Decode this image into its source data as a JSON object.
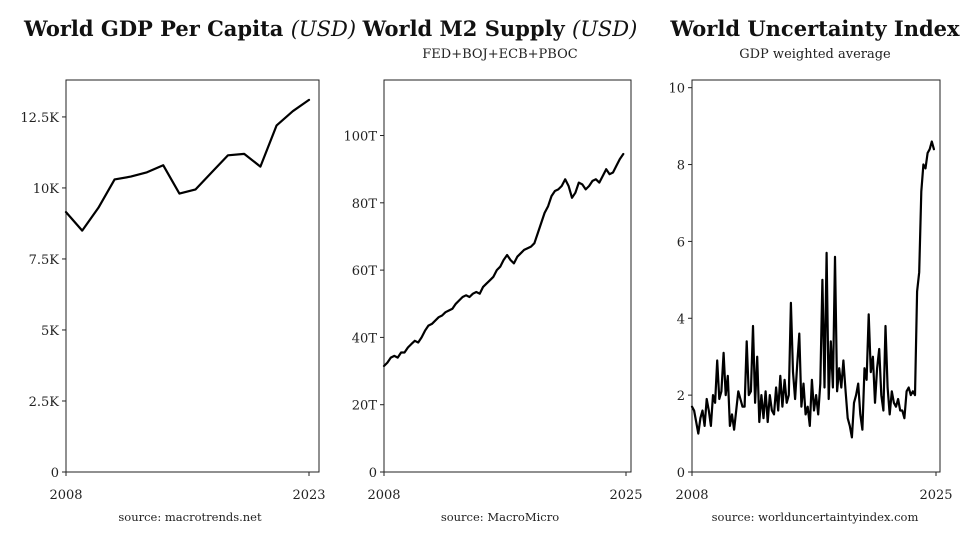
{
  "chart_data": [
    {
      "type": "line",
      "title": "World GDP Per Capita",
      "title_unit": "(USD)",
      "subtitle": "",
      "source": "source: macrotrends.net",
      "x_tick_labels": [
        "2008",
        "2023"
      ],
      "y_tick_labels": [
        "0",
        "2.5K",
        "5K",
        "7.5K",
        "10K",
        "12.5K"
      ],
      "y_ticks": [
        0,
        2500,
        5000,
        7500,
        10000,
        12500
      ],
      "xlim": [
        2008,
        2023
      ],
      "ylim": [
        0,
        13800
      ],
      "x": [
        2008,
        2009,
        2010,
        2011,
        2012,
        2013,
        2014,
        2015,
        2016,
        2017,
        2018,
        2019,
        2020,
        2021,
        2022,
        2023
      ],
      "values": [
        9150,
        8500,
        9300,
        10300,
        10400,
        10550,
        10800,
        9800,
        9950,
        10550,
        11150,
        11200,
        10750,
        12200,
        12700,
        13100
      ]
    },
    {
      "type": "line",
      "title": "World M2 Supply",
      "title_unit": "(USD)",
      "subtitle": "FED+BOJ+ECB+PBOC",
      "source": "source: MacroMicro",
      "x_tick_labels": [
        "2008",
        "2025"
      ],
      "y_tick_labels": [
        "0",
        "20T",
        "40T",
        "60T",
        "80T",
        "100T"
      ],
      "y_ticks": [
        0,
        20,
        40,
        60,
        80,
        100
      ],
      "xlim": [
        2008,
        2025.7
      ],
      "ylim": [
        0,
        116.5
      ],
      "x": [
        2008.0,
        2008.25,
        2008.5,
        2008.75,
        2009.0,
        2009.25,
        2009.5,
        2009.75,
        2010.0,
        2010.25,
        2010.5,
        2010.75,
        2011.0,
        2011.25,
        2011.5,
        2011.75,
        2012.0,
        2012.25,
        2012.5,
        2012.75,
        2013.0,
        2013.25,
        2013.5,
        2013.75,
        2014.0,
        2014.25,
        2014.5,
        2014.75,
        2015.0,
        2015.25,
        2015.5,
        2015.75,
        2016.0,
        2016.25,
        2016.5,
        2016.75,
        2017.0,
        2017.25,
        2017.5,
        2017.75,
        2018.0,
        2018.25,
        2018.5,
        2018.75,
        2019.0,
        2019.25,
        2019.5,
        2019.75,
        2020.0,
        2020.25,
        2020.5,
        2020.75,
        2021.0,
        2021.25,
        2021.5,
        2021.75,
        2022.0,
        2022.25,
        2022.5,
        2022.75,
        2023.0,
        2023.25,
        2023.5,
        2023.75,
        2024.0,
        2024.25,
        2024.5,
        2024.75,
        2025.0,
        2025.25,
        2025.5
      ],
      "values": [
        31.5,
        32.5,
        34,
        34.5,
        34,
        35.5,
        35.5,
        37,
        38,
        39,
        38.5,
        40,
        42,
        43.5,
        44,
        45,
        46,
        46.5,
        47.5,
        48,
        48.5,
        50,
        51,
        52,
        52.5,
        52,
        53,
        53.5,
        53,
        55,
        56,
        57,
        58,
        60,
        61,
        63,
        64.5,
        63,
        62,
        64,
        65,
        66,
        66.5,
        67,
        68,
        71,
        74,
        77,
        79,
        82,
        83.5,
        84,
        85,
        87,
        85,
        81.5,
        83,
        86,
        85.5,
        84,
        85,
        86.5,
        87,
        86,
        88,
        90,
        88.5,
        89,
        91,
        93,
        94.5
      ]
    },
    {
      "type": "line",
      "title": "World Uncertainty Index",
      "title_unit": "",
      "subtitle": "GDP weighted average",
      "source": "source: worlduncertaintyindex.com",
      "x_tick_labels": [
        "2008",
        "2025"
      ],
      "y_tick_labels": [
        "0",
        "2",
        "4",
        "6",
        "8",
        "10"
      ],
      "y_ticks": [
        0,
        2,
        4,
        6,
        8,
        10
      ],
      "xlim": [
        2008,
        2025.4
      ],
      "ylim": [
        0,
        10.2
      ],
      "x": [
        2008.0,
        2008.15,
        2008.3,
        2008.45,
        2008.6,
        2008.75,
        2008.9,
        2009.05,
        2009.2,
        2009.35,
        2009.5,
        2009.65,
        2009.8,
        2009.95,
        2010.1,
        2010.25,
        2010.4,
        2010.55,
        2010.7,
        2010.85,
        2011.0,
        2011.15,
        2011.3,
        2011.45,
        2011.6,
        2011.75,
        2011.9,
        2012.05,
        2012.2,
        2012.35,
        2012.5,
        2012.65,
        2012.8,
        2012.95,
        2013.1,
        2013.25,
        2013.4,
        2013.55,
        2013.7,
        2013.85,
        2014.0,
        2014.15,
        2014.3,
        2014.45,
        2014.6,
        2014.75,
        2014.9,
        2015.05,
        2015.2,
        2015.35,
        2015.5,
        2015.65,
        2015.8,
        2015.95,
        2016.1,
        2016.25,
        2016.4,
        2016.55,
        2016.7,
        2016.85,
        2017.0,
        2017.15,
        2017.3,
        2017.45,
        2017.6,
        2017.75,
        2017.9,
        2018.05,
        2018.2,
        2018.35,
        2018.5,
        2018.65,
        2018.8,
        2018.95,
        2019.1,
        2019.25,
        2019.4,
        2019.55,
        2019.7,
        2019.85,
        2020.0,
        2020.15,
        2020.3,
        2020.45,
        2020.6,
        2020.75,
        2020.9,
        2021.05,
        2021.2,
        2021.35,
        2021.5,
        2021.65,
        2021.8,
        2021.95,
        2022.1,
        2022.25,
        2022.4,
        2022.55,
        2022.7,
        2022.85,
        2023.0,
        2023.15,
        2023.3,
        2023.45,
        2023.6,
        2023.75,
        2023.9,
        2024.05,
        2024.2,
        2024.35,
        2024.5,
        2024.65,
        2024.8,
        2024.95,
        2025.1,
        2025.25
      ],
      "values": [
        1.7,
        1.6,
        1.3,
        1.0,
        1.4,
        1.6,
        1.2,
        1.9,
        1.6,
        1.2,
        2.0,
        1.8,
        2.9,
        1.9,
        2.1,
        3.1,
        2.0,
        2.5,
        1.2,
        1.5,
        1.1,
        1.6,
        2.1,
        1.9,
        1.7,
        1.7,
        3.4,
        2.0,
        2.1,
        3.8,
        1.8,
        3.0,
        1.3,
        2.0,
        1.4,
        2.1,
        1.3,
        2.0,
        1.6,
        1.5,
        2.2,
        1.6,
        2.5,
        1.7,
        2.4,
        1.8,
        2.0,
        4.4,
        2.6,
        1.9,
        2.8,
        3.6,
        1.7,
        2.3,
        1.5,
        1.7,
        1.2,
        2.4,
        1.6,
        2.0,
        1.5,
        2.3,
        5.0,
        2.2,
        5.7,
        1.9,
        3.4,
        2.2,
        5.6,
        2.1,
        2.7,
        2.2,
        2.9,
        2.1,
        1.4,
        1.2,
        0.9,
        1.8,
        2.0,
        2.3,
        1.5,
        1.1,
        2.7,
        2.4,
        4.1,
        2.6,
        3.0,
        1.8,
        2.7,
        3.2,
        2.0,
        1.6,
        3.8,
        2.2,
        1.5,
        2.1,
        1.8,
        1.7,
        1.9,
        1.6,
        1.6,
        1.4,
        2.1,
        2.2,
        2.0,
        2.1,
        2.0,
        4.7,
        5.2,
        7.3,
        8.0,
        7.9,
        8.3,
        8.4,
        8.6,
        8.4
      ]
    }
  ]
}
